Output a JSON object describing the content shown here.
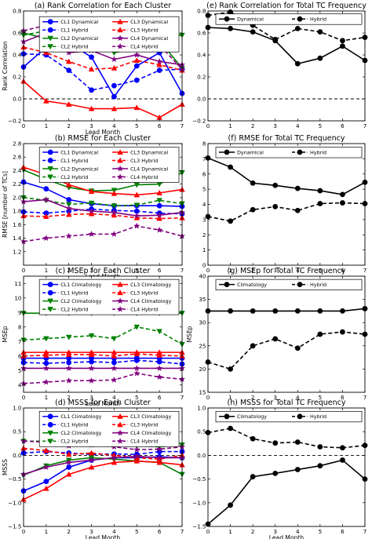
{
  "chart_data": [
    {
      "id": "a",
      "type": "line",
      "title": "(a) Rank Correlation for Each Cluster",
      "xlabel": "Lead Month",
      "ylabel": "Rank Correlation",
      "x": [
        0,
        1,
        2,
        3,
        4,
        5,
        6,
        7
      ],
      "xlim": [
        0,
        7
      ],
      "ylim": [
        -0.2,
        0.8
      ],
      "yticks": [
        -0.2,
        0.0,
        0.2,
        0.4,
        0.6,
        0.8
      ],
      "ytick_labels": [
        "−0.2",
        "0.0",
        "0.2",
        "0.4",
        "0.6",
        "0.8"
      ],
      "zero_line": true,
      "legend": "top",
      "series": [
        {
          "name": "CL1 Dynamical",
          "color": "#0000ff",
          "marker": "circle",
          "style": "solid",
          "values": [
            0.29,
            0.47,
            0.51,
            0.38,
            0.02,
            0.3,
            0.42,
            0.05
          ]
        },
        {
          "name": "CL1 Hybrid",
          "color": "#0000ff",
          "marker": "circle",
          "style": "dashed",
          "values": [
            0.41,
            0.4,
            0.26,
            0.08,
            0.12,
            0.17,
            0.26,
            0.27
          ]
        },
        {
          "name": "CL2 Dynamical",
          "color": "#008000",
          "marker": "tri-down",
          "style": "solid",
          "values": [
            0.6,
            0.55,
            0.6,
            0.54,
            0.42,
            0.46,
            0.53,
            0.28
          ]
        },
        {
          "name": "CL2 Hybrid",
          "color": "#008000",
          "marker": "tri-down",
          "style": "dashed",
          "values": [
            0.58,
            0.62,
            0.6,
            0.63,
            0.61,
            0.59,
            0.56,
            0.58
          ]
        },
        {
          "name": "CL3 Dynamical",
          "color": "#ff0000",
          "marker": "tri-up",
          "style": "solid",
          "values": [
            0.16,
            -0.02,
            -0.05,
            -0.09,
            -0.09,
            -0.08,
            -0.17,
            -0.05
          ]
        },
        {
          "name": "CL3 Hybrid",
          "color": "#ff0000",
          "marker": "tri-up",
          "style": "dashed",
          "values": [
            0.47,
            0.42,
            0.34,
            0.27,
            0.28,
            0.35,
            0.31,
            0.26
          ]
        },
        {
          "name": "CL4 Dynamical",
          "color": "#800080",
          "marker": "star",
          "style": "solid",
          "values": [
            0.52,
            0.6,
            0.42,
            0.44,
            0.36,
            0.4,
            0.34,
            0.31
          ]
        },
        {
          "name": "CL4 Hybrid",
          "color": "#800080",
          "marker": "star",
          "style": "dashed",
          "values": [
            0.62,
            0.67,
            0.58,
            0.6,
            0.52,
            0.57,
            0.49,
            0.27
          ]
        }
      ]
    },
    {
      "id": "e",
      "type": "line",
      "title": "(e) Rank Correlation for Total TC Frequency",
      "xlabel": "",
      "ylabel": "",
      "x": [
        0,
        1,
        2,
        3,
        4,
        5,
        6,
        7
      ],
      "xlim": [
        0,
        7
      ],
      "ylim": [
        -0.2,
        0.8
      ],
      "yticks": [
        -0.2,
        0.0,
        0.2,
        0.4,
        0.6,
        0.8
      ],
      "ytick_labels": [
        "−0.2",
        "0.0",
        "0.2",
        "0.4",
        "0.6",
        "0.8"
      ],
      "zero_line": true,
      "legend": "top",
      "series": [
        {
          "name": "Dynamical",
          "color": "#000000",
          "marker": "circle",
          "style": "solid",
          "values": [
            0.65,
            0.64,
            0.61,
            0.53,
            0.32,
            0.37,
            0.48,
            0.35
          ]
        },
        {
          "name": "Hybrid",
          "color": "#000000",
          "marker": "circle",
          "style": "dashed",
          "values": [
            0.76,
            0.79,
            0.67,
            0.54,
            0.64,
            0.61,
            0.53,
            0.56
          ]
        }
      ]
    },
    {
      "id": "b",
      "type": "line",
      "title": "(b) RMSE for Each Cluster",
      "xlabel": "Lead Month",
      "ylabel": "RMSE [number of TCs]",
      "x": [
        0,
        1,
        2,
        3,
        4,
        5,
        6,
        7
      ],
      "xlim": [
        0,
        7
      ],
      "ylim": [
        1.0,
        2.8
      ],
      "yticks": [
        1.2,
        1.4,
        1.6,
        1.8,
        2.0,
        2.2,
        2.4,
        2.6,
        2.8
      ],
      "ytick_labels": [
        "1.2",
        "1.4",
        "1.6",
        "1.8",
        "2.0",
        "2.2",
        "2.4",
        "2.6",
        "2.8"
      ],
      "zero_line": false,
      "legend": "top",
      "series": [
        {
          "name": "CL1 Dynamical",
          "color": "#0000ff",
          "marker": "circle",
          "style": "solid",
          "values": [
            2.23,
            2.13,
            1.97,
            1.91,
            1.88,
            1.88,
            1.88,
            1.87
          ]
        },
        {
          "name": "CL1 Hybrid",
          "color": "#0000ff",
          "marker": "circle",
          "style": "dashed",
          "values": [
            1.79,
            1.77,
            1.8,
            1.83,
            1.81,
            1.8,
            1.77,
            1.76
          ]
        },
        {
          "name": "CL2 Dynamical",
          "color": "#008000",
          "marker": "tri-down",
          "style": "solid",
          "values": [
            2.41,
            2.27,
            2.15,
            2.1,
            2.11,
            2.19,
            2.2,
            2.37
          ]
        },
        {
          "name": "CL2 Hybrid",
          "color": "#008000",
          "marker": "tri-down",
          "style": "dashed",
          "values": [
            2.0,
            1.96,
            1.9,
            1.92,
            1.88,
            1.89,
            1.96,
            1.91
          ]
        },
        {
          "name": "CL3 Dynamical",
          "color": "#ff0000",
          "marker": "tri-up",
          "style": "solid",
          "values": [
            2.45,
            2.34,
            2.19,
            2.09,
            2.06,
            2.04,
            2.07,
            2.12
          ]
        },
        {
          "name": "CL3 Hybrid",
          "color": "#ff0000",
          "marker": "tri-up",
          "style": "dashed",
          "values": [
            1.73,
            1.72,
            1.75,
            1.76,
            1.74,
            1.7,
            1.69,
            1.7
          ]
        },
        {
          "name": "CL4 Dynamical",
          "color": "#800080",
          "marker": "star",
          "style": "solid",
          "values": [
            1.94,
            1.97,
            1.84,
            1.8,
            1.78,
            1.73,
            1.74,
            1.78
          ]
        },
        {
          "name": "CL4 Hybrid",
          "color": "#800080",
          "marker": "star",
          "style": "dashed",
          "values": [
            1.35,
            1.4,
            1.43,
            1.46,
            1.46,
            1.58,
            1.52,
            1.43
          ]
        }
      ]
    },
    {
      "id": "f",
      "type": "line",
      "title": "(f) RMSE for Total TC Frequency",
      "xlabel": "",
      "ylabel": "",
      "x": [
        0,
        1,
        2,
        3,
        4,
        5,
        6,
        7
      ],
      "xlim": [
        0,
        7
      ],
      "ylim": [
        0,
        8
      ],
      "yticks": [
        0,
        1,
        2,
        3,
        4,
        5,
        6,
        7,
        8
      ],
      "ytick_labels": [
        "0",
        "1",
        "2",
        "3",
        "4",
        "5",
        "6",
        "7",
        "8"
      ],
      "zero_line": false,
      "legend": "top",
      "series": [
        {
          "name": "Dynamical",
          "color": "#000000",
          "marker": "circle",
          "style": "solid",
          "values": [
            7.05,
            6.45,
            5.4,
            5.25,
            5.05,
            4.9,
            4.65,
            5.45
          ]
        },
        {
          "name": "Hybrid",
          "color": "#000000",
          "marker": "circle",
          "style": "dashed",
          "values": [
            3.2,
            2.9,
            3.65,
            3.85,
            3.6,
            4.05,
            4.1,
            4.05
          ]
        }
      ]
    },
    {
      "id": "c",
      "type": "line",
      "title": "(c) MSEp for Each Cluster",
      "xlabel": "Lead Month",
      "ylabel": "MSEp",
      "x": [
        0,
        1,
        2,
        3,
        4,
        5,
        6,
        7
      ],
      "xlim": [
        0,
        7
      ],
      "ylim": [
        3.5,
        11.5
      ],
      "yticks": [
        4,
        5,
        6,
        7,
        8,
        9,
        10,
        11
      ],
      "ytick_labels": [
        "4",
        "5",
        "6",
        "7",
        "8",
        "9",
        "10",
        "11"
      ],
      "zero_line": false,
      "legend": "top",
      "series": [
        {
          "name": "CL1 Climatology",
          "color": "#0000ff",
          "marker": "circle",
          "style": "solid",
          "values": [
            5.85,
            5.85,
            5.85,
            5.85,
            5.85,
            5.85,
            5.85,
            5.85
          ]
        },
        {
          "name": "CL1 Hybrid",
          "color": "#0000ff",
          "marker": "circle",
          "style": "dashed",
          "values": [
            5.55,
            5.5,
            5.55,
            5.6,
            5.55,
            5.7,
            5.6,
            5.45
          ]
        },
        {
          "name": "CL2 Climatology",
          "color": "#008000",
          "marker": "tri-down",
          "style": "solid",
          "values": [
            8.95,
            8.95,
            8.95,
            8.95,
            8.95,
            8.95,
            8.95,
            8.95
          ]
        },
        {
          "name": "CL2 Hybrid",
          "color": "#008000",
          "marker": "tri-down",
          "style": "dashed",
          "values": [
            7.1,
            7.2,
            7.3,
            7.4,
            7.2,
            8.0,
            7.7,
            6.8
          ]
        },
        {
          "name": "CL3 Climatology",
          "color": "#ff0000",
          "marker": "tri-up",
          "style": "solid",
          "values": [
            6.25,
            6.25,
            6.25,
            6.25,
            6.25,
            6.25,
            6.25,
            6.25
          ]
        },
        {
          "name": "CL3 Hybrid",
          "color": "#ff0000",
          "marker": "tri-up",
          "style": "dashed",
          "values": [
            6.0,
            6.05,
            6.1,
            6.1,
            6.0,
            6.15,
            6.05,
            6.0
          ]
        },
        {
          "name": "CL4 Climatology",
          "color": "#800080",
          "marker": "star",
          "style": "solid",
          "values": [
            5.15,
            5.15,
            5.15,
            5.15,
            5.15,
            5.15,
            5.15,
            5.15
          ]
        },
        {
          "name": "CL4 Hybrid",
          "color": "#800080",
          "marker": "star",
          "style": "dashed",
          "values": [
            4.1,
            4.2,
            4.3,
            4.3,
            4.35,
            4.8,
            4.55,
            4.4
          ]
        }
      ]
    },
    {
      "id": "g",
      "type": "line",
      "title": "(g) MSEp for Total TC Frequency",
      "xlabel": "",
      "ylabel": "MSEp",
      "x": [
        0,
        1,
        2,
        3,
        4,
        5,
        6,
        7
      ],
      "xlim": [
        0,
        7
      ],
      "ylim": [
        15,
        40
      ],
      "yticks": [
        15,
        20,
        25,
        30,
        35,
        40
      ],
      "ytick_labels": [
        "15",
        "20",
        "25",
        "30",
        "35",
        "40"
      ],
      "zero_line": false,
      "legend": "top",
      "series": [
        {
          "name": "Climatology",
          "color": "#000000",
          "marker": "circle",
          "style": "solid",
          "values": [
            32.5,
            32.5,
            32.5,
            32.5,
            32.5,
            32.5,
            32.5,
            33.0
          ]
        },
        {
          "name": "Hybrid",
          "color": "#000000",
          "marker": "circle",
          "style": "dashed",
          "values": [
            21.5,
            20.0,
            25.0,
            26.5,
            24.5,
            27.5,
            28.0,
            27.5
          ]
        }
      ]
    },
    {
      "id": "d",
      "type": "line",
      "title": "(d) MSSS for Each Cluster",
      "xlabel": "Lead Month",
      "ylabel": "MSSS",
      "x": [
        0,
        1,
        2,
        3,
        4,
        5,
        6,
        7
      ],
      "xlim": [
        0,
        7
      ],
      "ylim": [
        -1.5,
        1.0
      ],
      "yticks": [
        -1.5,
        -1.0,
        -0.5,
        0.0,
        0.5,
        1.0
      ],
      "ytick_labels": [
        "−1.5",
        "−1.0",
        "−0.5",
        "0.0",
        "0.5",
        "1.0"
      ],
      "zero_line": true,
      "legend": "top",
      "series": [
        {
          "name": "CL1 Climatology",
          "color": "#0000ff",
          "marker": "circle",
          "style": "solid",
          "values": [
            -0.75,
            -0.55,
            -0.25,
            -0.1,
            -0.05,
            -0.05,
            -0.03,
            -0.05
          ]
        },
        {
          "name": "CL1 Hybrid",
          "color": "#0000ff",
          "marker": "circle",
          "style": "dashed",
          "values": [
            0.05,
            0.08,
            0.05,
            0.02,
            0.03,
            0.02,
            0.08,
            0.08
          ]
        },
        {
          "name": "CL2 Climatology",
          "color": "#008000",
          "marker": "tri-down",
          "style": "solid",
          "values": [
            -0.42,
            -0.22,
            -0.1,
            -0.05,
            -0.08,
            -0.12,
            -0.15,
            -0.4
          ]
        },
        {
          "name": "CL2 Hybrid",
          "color": "#008000",
          "marker": "tri-down",
          "style": "dashed",
          "values": [
            0.3,
            0.3,
            0.25,
            0.28,
            0.25,
            0.2,
            0.18,
            0.22
          ]
        },
        {
          "name": "CL3 Climatology",
          "color": "#ff0000",
          "marker": "tri-up",
          "style": "solid",
          "values": [
            -0.93,
            -0.7,
            -0.4,
            -0.25,
            -0.15,
            -0.12,
            -0.15,
            -0.2
          ]
        },
        {
          "name": "CL3 Hybrid",
          "color": "#ff0000",
          "marker": "tri-up",
          "style": "dashed",
          "values": [
            0.15,
            0.1,
            0.02,
            0.05,
            0.0,
            -0.05,
            -0.08,
            0.0
          ]
        },
        {
          "name": "CL4 Climatology",
          "color": "#800080",
          "marker": "star",
          "style": "solid",
          "values": [
            -0.4,
            -0.25,
            -0.15,
            -0.1,
            -0.05,
            -0.02,
            -0.05,
            -0.05
          ]
        },
        {
          "name": "CL4 Hybrid",
          "color": "#800080",
          "marker": "star",
          "style": "dashed",
          "values": [
            0.3,
            0.28,
            0.2,
            0.22,
            0.18,
            0.12,
            0.13,
            0.18
          ]
        }
      ]
    },
    {
      "id": "h",
      "type": "line",
      "title": "(h) MSSS for Total TC Frequency",
      "xlabel": "Lead Month",
      "ylabel": "",
      "x": [
        0,
        1,
        2,
        3,
        4,
        5,
        6,
        7
      ],
      "xlim": [
        0,
        7
      ],
      "ylim": [
        -1.5,
        1.0
      ],
      "yticks": [
        -1.5,
        -1.0,
        -0.5,
        0.0,
        0.5,
        1.0
      ],
      "ytick_labels": [
        "−1.5",
        "−1.0",
        "−0.5",
        "0.0",
        "0.5",
        "1.0"
      ],
      "zero_line": true,
      "legend": "top",
      "series": [
        {
          "name": "Climatology",
          "color": "#000000",
          "marker": "circle",
          "style": "solid",
          "values": [
            -1.45,
            -1.05,
            -0.45,
            -0.38,
            -0.3,
            -0.22,
            -0.1,
            -0.5
          ]
        },
        {
          "name": "Hybrid",
          "color": "#000000",
          "marker": "circle",
          "style": "dashed",
          "values": [
            0.48,
            0.57,
            0.35,
            0.26,
            0.28,
            0.18,
            0.16,
            0.21
          ]
        }
      ]
    }
  ]
}
